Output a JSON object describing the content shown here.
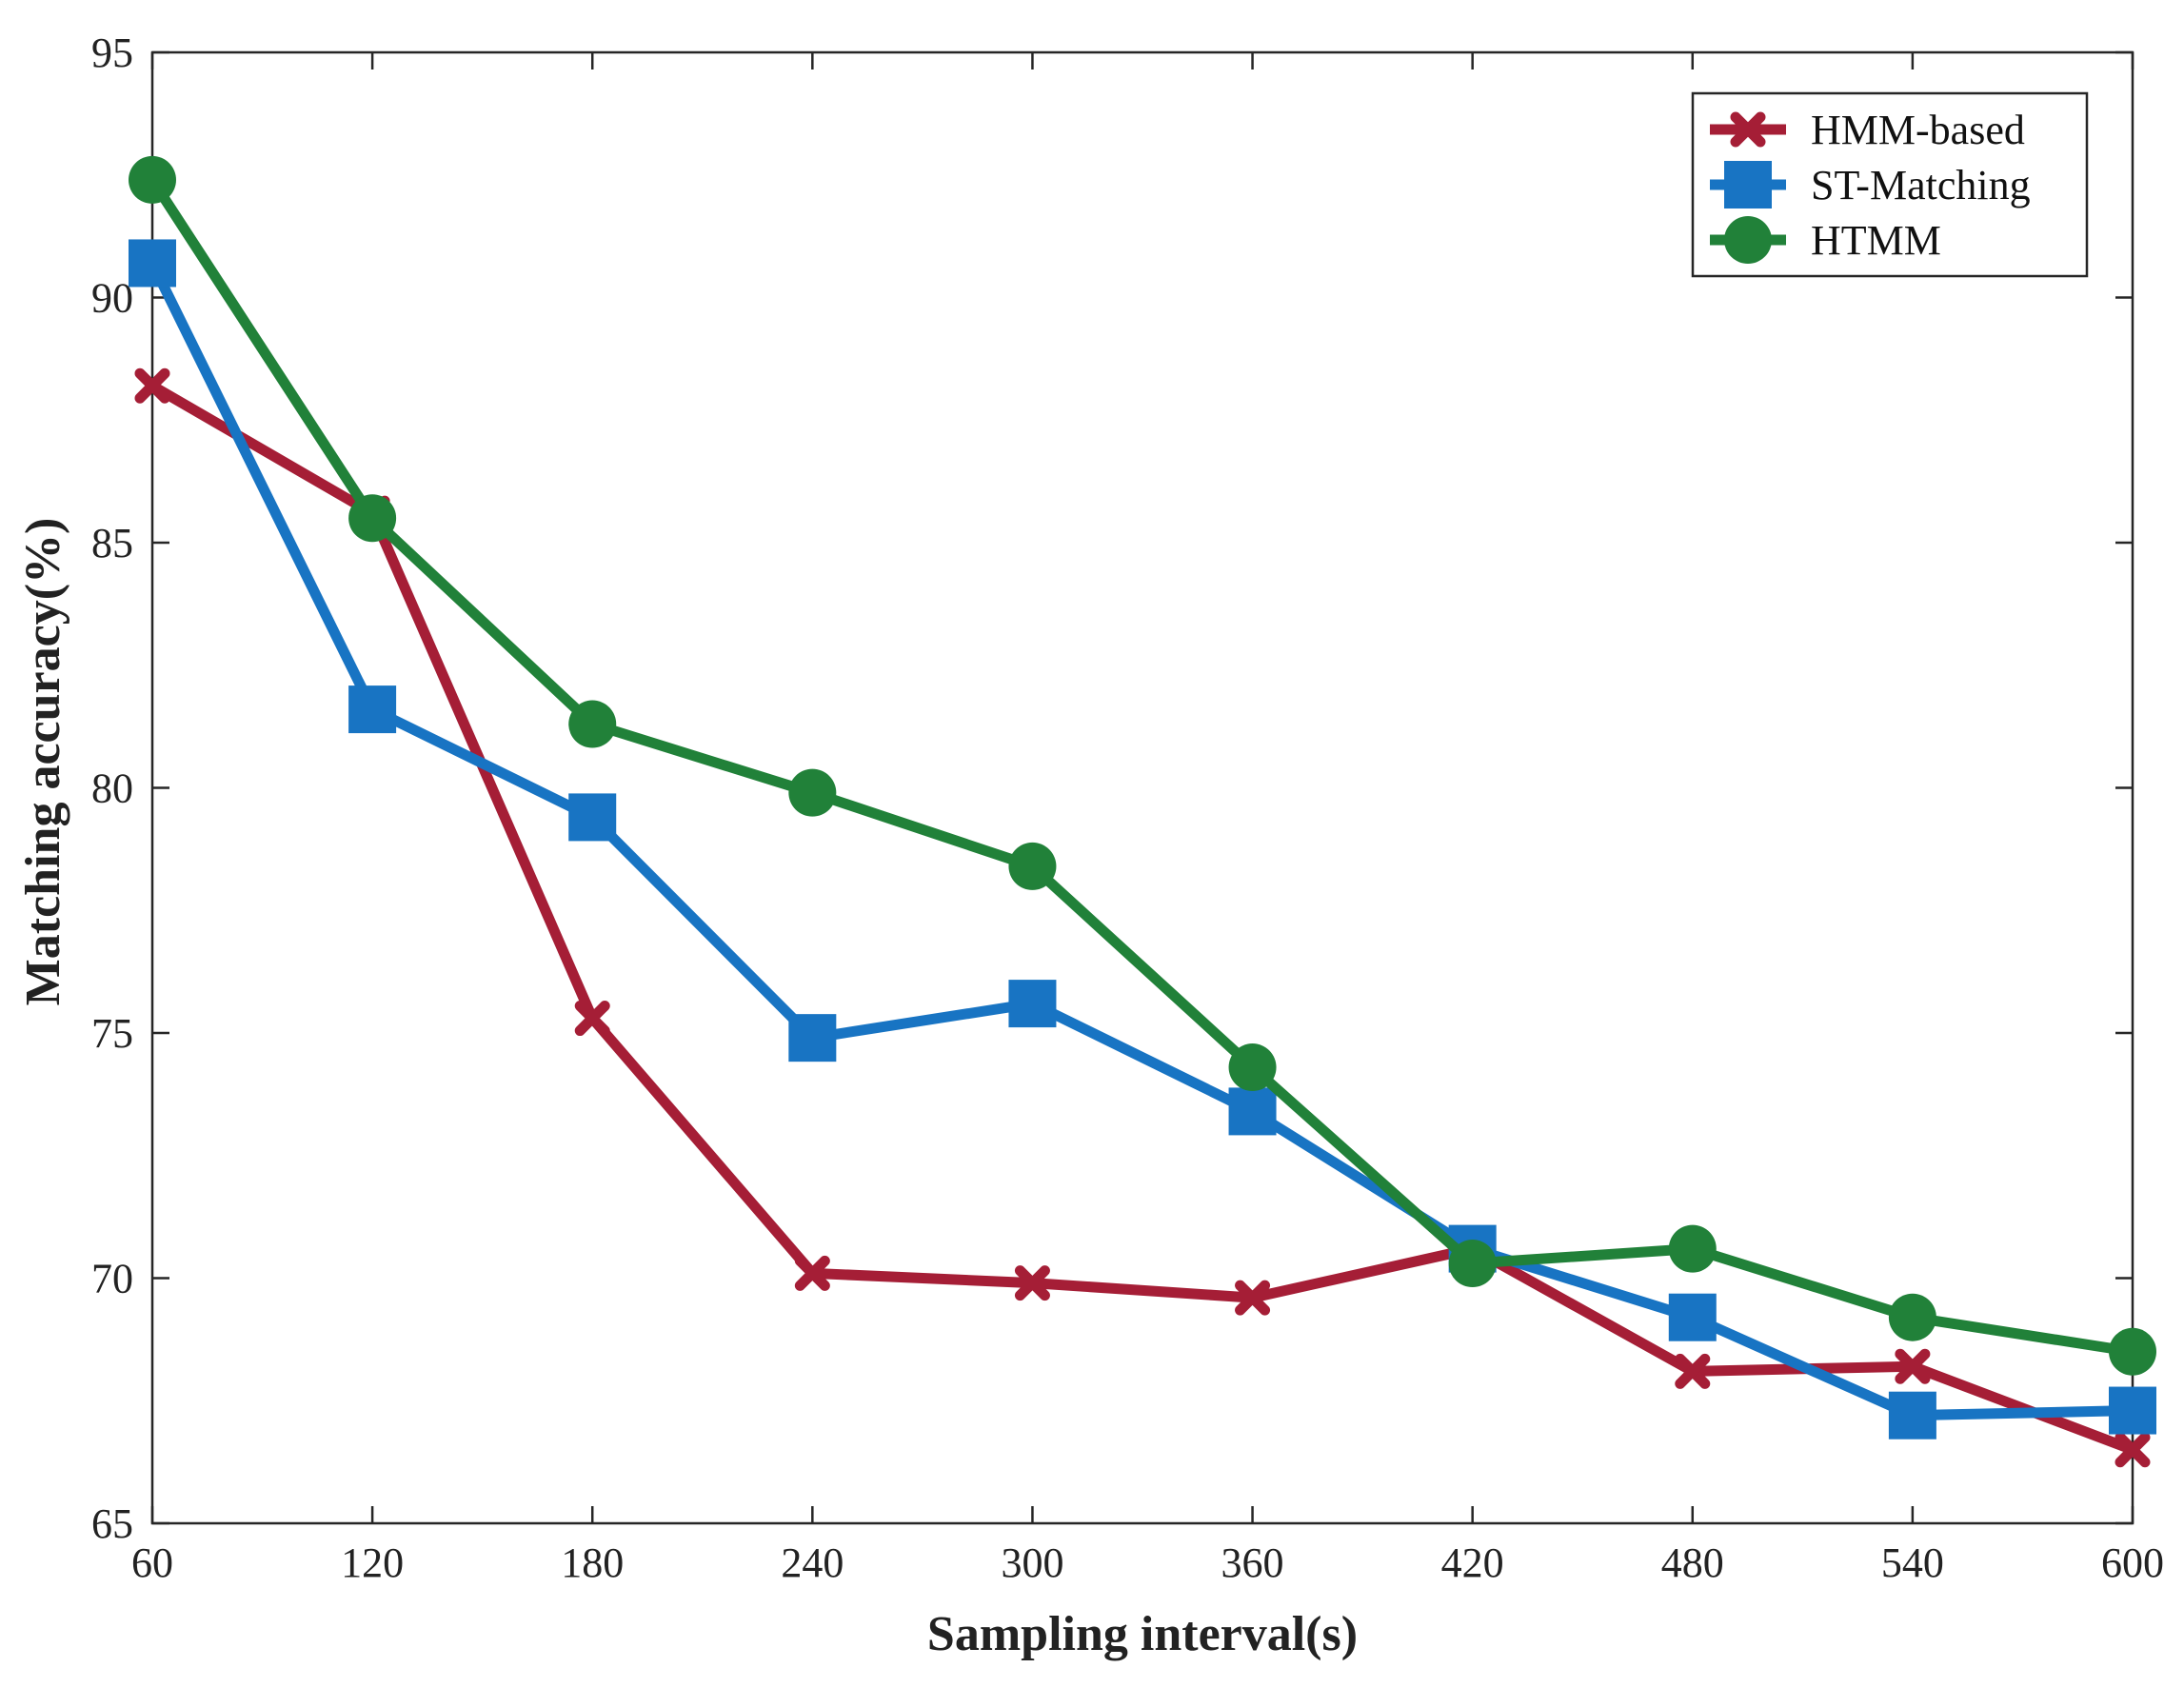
{
  "chart_data": {
    "type": "line",
    "title": "",
    "xlabel": "Sampling interval(s)",
    "ylabel": "Matching accuracy(%)",
    "x": [
      60,
      120,
      180,
      240,
      300,
      360,
      420,
      480,
      540,
      600
    ],
    "xlim": [
      60,
      600
    ],
    "ylim": [
      65,
      95
    ],
    "xticks": [
      60,
      120,
      180,
      240,
      300,
      360,
      420,
      480,
      540,
      600
    ],
    "yticks": [
      65,
      70,
      75,
      80,
      85,
      90,
      95
    ],
    "grid": false,
    "legend_position": "top-right",
    "series": [
      {
        "name": "HMM-based",
        "marker": "x",
        "color": "#A51E36",
        "values": [
          88.2,
          85.6,
          75.3,
          70.1,
          69.9,
          69.6,
          70.6,
          68.1,
          68.2,
          66.5
        ]
      },
      {
        "name": "ST-Matching",
        "marker": "square",
        "color": "#1874C3",
        "values": [
          90.7,
          81.6,
          79.4,
          74.9,
          75.6,
          73.4,
          70.6,
          69.2,
          67.2,
          67.3
        ]
      },
      {
        "name": "HTMM",
        "marker": "circle",
        "color": "#218139",
        "values": [
          92.4,
          85.5,
          81.3,
          79.9,
          78.4,
          74.3,
          70.3,
          70.6,
          69.2,
          68.5
        ]
      }
    ]
  }
}
